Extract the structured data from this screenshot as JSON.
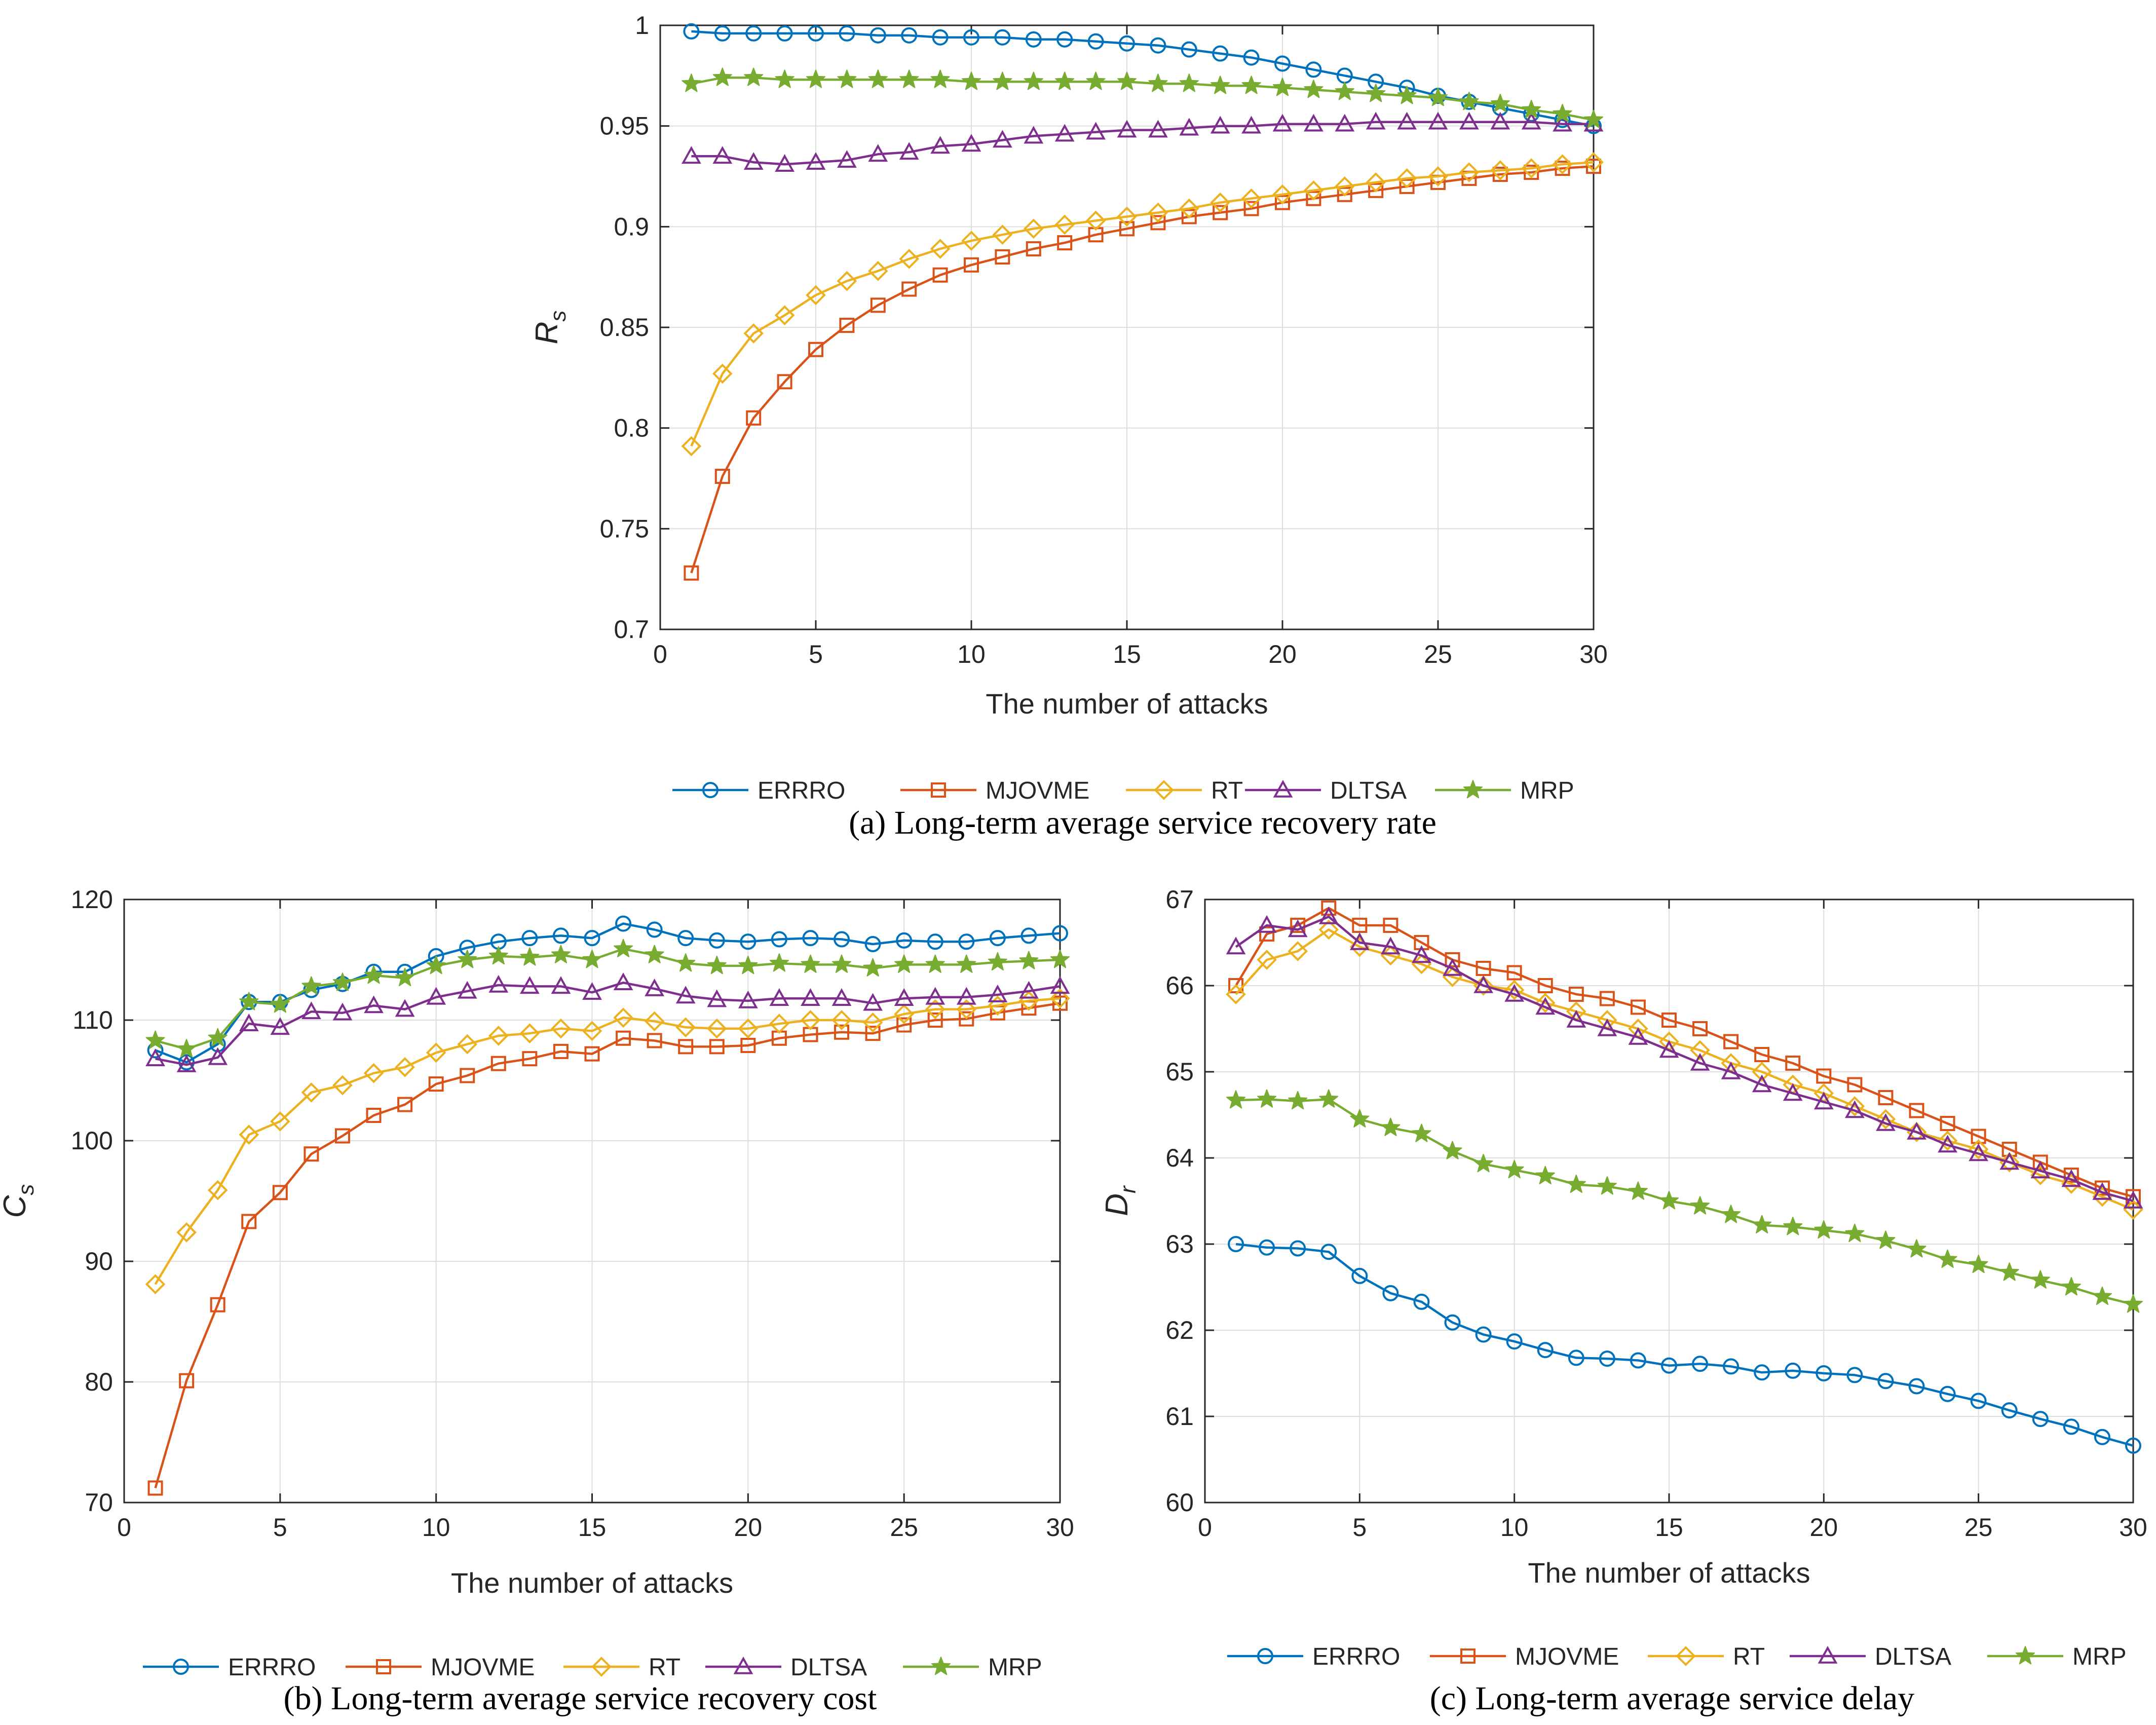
{
  "colors": {
    "ERRRO": "#0072BD",
    "MJOVME": "#D95319",
    "RT": "#EDB120",
    "DLTSA": "#7E2F8E",
    "MRP": "#77AC30"
  },
  "chart_data": [
    {
      "id": "a",
      "type": "line",
      "caption": "(a) Long-term average service recovery rate",
      "xlabel": "The number of attacks",
      "ylabel": "R",
      "ylabel_sub": "s",
      "xlim": [
        0,
        30
      ],
      "ylim": [
        0.7,
        1
      ],
      "xticks": [
        0,
        5,
        10,
        15,
        20,
        25,
        30
      ],
      "xtick_labels": [
        "0",
        "5",
        "10",
        "15",
        "20",
        "25",
        "30"
      ],
      "yticks": [
        0.7,
        0.75,
        0.8,
        0.85,
        0.9,
        0.95,
        1
      ],
      "ytick_labels": [
        "0.7",
        "0.75",
        "0.8",
        "0.85",
        "0.9",
        "0.95",
        "1"
      ],
      "x": [
        1,
        2,
        3,
        4,
        5,
        6,
        7,
        8,
        9,
        10,
        11,
        12,
        13,
        14,
        15,
        16,
        17,
        18,
        19,
        20,
        21,
        22,
        23,
        24,
        25,
        26,
        27,
        28,
        29,
        30
      ],
      "series": [
        {
          "name": "ERRRO",
          "marker": "circle",
          "values": [
            0.997,
            0.996,
            0.996,
            0.996,
            0.996,
            0.996,
            0.995,
            0.995,
            0.994,
            0.994,
            0.994,
            0.993,
            0.993,
            0.992,
            0.991,
            0.99,
            0.988,
            0.986,
            0.984,
            0.981,
            0.978,
            0.975,
            0.972,
            0.969,
            0.965,
            0.962,
            0.959,
            0.956,
            0.953,
            0.95
          ]
        },
        {
          "name": "MJOVME",
          "marker": "square",
          "values": [
            0.728,
            0.776,
            0.805,
            0.823,
            0.839,
            0.851,
            0.861,
            0.869,
            0.876,
            0.881,
            0.885,
            0.889,
            0.892,
            0.896,
            0.899,
            0.902,
            0.905,
            0.907,
            0.909,
            0.912,
            0.914,
            0.916,
            0.918,
            0.92,
            0.922,
            0.924,
            0.926,
            0.927,
            0.929,
            0.93
          ]
        },
        {
          "name": "RT",
          "marker": "diamond",
          "values": [
            0.791,
            0.827,
            0.847,
            0.856,
            0.866,
            0.873,
            0.878,
            0.884,
            0.889,
            0.893,
            0.896,
            0.899,
            0.901,
            0.903,
            0.905,
            0.907,
            0.909,
            0.912,
            0.914,
            0.916,
            0.918,
            0.92,
            0.922,
            0.924,
            0.925,
            0.927,
            0.928,
            0.929,
            0.931,
            0.932
          ]
        },
        {
          "name": "DLTSA",
          "marker": "triangle",
          "values": [
            0.935,
            0.935,
            0.932,
            0.931,
            0.932,
            0.933,
            0.936,
            0.937,
            0.94,
            0.941,
            0.943,
            0.945,
            0.946,
            0.947,
            0.948,
            0.948,
            0.949,
            0.95,
            0.95,
            0.951,
            0.951,
            0.951,
            0.952,
            0.952,
            0.952,
            0.952,
            0.952,
            0.952,
            0.951,
            0.951
          ]
        },
        {
          "name": "MRP",
          "marker": "star",
          "values": [
            0.971,
            0.974,
            0.974,
            0.973,
            0.973,
            0.973,
            0.973,
            0.973,
            0.973,
            0.972,
            0.972,
            0.972,
            0.972,
            0.972,
            0.972,
            0.971,
            0.971,
            0.97,
            0.97,
            0.969,
            0.968,
            0.967,
            0.966,
            0.965,
            0.964,
            0.962,
            0.961,
            0.958,
            0.956,
            0.953
          ]
        }
      ]
    },
    {
      "id": "b",
      "type": "line",
      "caption": "(b) Long-term average service recovery cost",
      "xlabel": "The number of attacks",
      "ylabel": "C",
      "ylabel_sub": "s",
      "xlim": [
        0,
        30
      ],
      "ylim": [
        70,
        120
      ],
      "xticks": [
        0,
        5,
        10,
        15,
        20,
        25,
        30
      ],
      "xtick_labels": [
        "0",
        "5",
        "10",
        "15",
        "20",
        "25",
        "30"
      ],
      "yticks": [
        70,
        80,
        90,
        100,
        110,
        120
      ],
      "ytick_labels": [
        "70",
        "80",
        "90",
        "100",
        "110",
        "120"
      ],
      "x": [
        1,
        2,
        3,
        4,
        5,
        6,
        7,
        8,
        9,
        10,
        11,
        12,
        13,
        14,
        15,
        16,
        17,
        18,
        19,
        20,
        21,
        22,
        23,
        24,
        25,
        26,
        27,
        28,
        29,
        30
      ],
      "series": [
        {
          "name": "ERRRO",
          "marker": "circle",
          "values": [
            107.5,
            106.5,
            108,
            111.5,
            111.5,
            112.5,
            113,
            114,
            114,
            115.3,
            116,
            116.5,
            116.8,
            117,
            116.8,
            118,
            117.5,
            116.8,
            116.6,
            116.5,
            116.7,
            116.8,
            116.7,
            116.3,
            116.6,
            116.5,
            116.5,
            116.8,
            117,
            117.2
          ]
        },
        {
          "name": "MJOVME",
          "marker": "square",
          "values": [
            71.2,
            80.1,
            86.4,
            93.3,
            95.7,
            98.9,
            100.4,
            102.1,
            103,
            104.7,
            105.4,
            106.4,
            106.8,
            107.4,
            107.2,
            108.5,
            108.3,
            107.8,
            107.8,
            107.9,
            108.5,
            108.8,
            109,
            108.9,
            109.6,
            110,
            110.1,
            110.6,
            111,
            111.4
          ]
        },
        {
          "name": "RT",
          "marker": "diamond",
          "values": [
            88.1,
            92.4,
            95.9,
            100.5,
            101.6,
            104,
            104.6,
            105.6,
            106.1,
            107.3,
            108,
            108.7,
            108.9,
            109.3,
            109.1,
            110.2,
            109.9,
            109.4,
            109.3,
            109.3,
            109.7,
            110,
            110,
            109.8,
            110.5,
            110.9,
            110.9,
            111.2,
            111.6,
            111.8
          ]
        },
        {
          "name": "DLTSA",
          "marker": "triangle",
          "values": [
            106.8,
            106.3,
            106.9,
            109.7,
            109.4,
            110.7,
            110.6,
            111.2,
            110.9,
            111.9,
            112.4,
            112.9,
            112.8,
            112.8,
            112.3,
            113.1,
            112.6,
            112,
            111.7,
            111.6,
            111.8,
            111.8,
            111.8,
            111.4,
            111.8,
            111.9,
            111.9,
            112.1,
            112.4,
            112.8
          ]
        },
        {
          "name": "MRP",
          "marker": "star",
          "values": [
            108.3,
            107.6,
            108.5,
            111.5,
            111.3,
            112.8,
            113.1,
            113.7,
            113.5,
            114.5,
            115,
            115.3,
            115.2,
            115.4,
            115,
            115.9,
            115.4,
            114.7,
            114.5,
            114.5,
            114.7,
            114.6,
            114.6,
            114.3,
            114.6,
            114.6,
            114.6,
            114.8,
            114.9,
            115
          ]
        }
      ]
    },
    {
      "id": "c",
      "type": "line",
      "caption": "(c) Long-term average service delay",
      "xlabel": "The number of attacks",
      "ylabel": "D",
      "ylabel_sub": "r",
      "xlim": [
        0,
        30
      ],
      "ylim": [
        60,
        67
      ],
      "xticks": [
        0,
        5,
        10,
        15,
        20,
        25,
        30
      ],
      "xtick_labels": [
        "0",
        "5",
        "10",
        "15",
        "20",
        "25",
        "30"
      ],
      "yticks": [
        60,
        61,
        62,
        63,
        64,
        65,
        66,
        67
      ],
      "ytick_labels": [
        "60",
        "61",
        "62",
        "63",
        "64",
        "65",
        "66",
        "67"
      ],
      "x": [
        1,
        2,
        3,
        4,
        5,
        6,
        7,
        8,
        9,
        10,
        11,
        12,
        13,
        14,
        15,
        16,
        17,
        18,
        19,
        20,
        21,
        22,
        23,
        24,
        25,
        26,
        27,
        28,
        29,
        30
      ],
      "series": [
        {
          "name": "ERRRO",
          "marker": "circle",
          "values": [
            63,
            62.96,
            62.95,
            62.91,
            62.63,
            62.43,
            62.33,
            62.09,
            61.95,
            61.87,
            61.77,
            61.68,
            61.67,
            61.65,
            61.59,
            61.61,
            61.58,
            61.51,
            61.53,
            61.5,
            61.48,
            61.41,
            61.35,
            61.26,
            61.18,
            61.07,
            60.97,
            60.88,
            60.76,
            60.66
          ]
        },
        {
          "name": "MJOVME",
          "marker": "square",
          "values": [
            66,
            66.6,
            66.7,
            66.9,
            66.7,
            66.7,
            66.5,
            66.3,
            66.2,
            66.15,
            66,
            65.9,
            65.85,
            65.75,
            65.6,
            65.5,
            65.35,
            65.2,
            65.1,
            64.95,
            64.85,
            64.7,
            64.55,
            64.4,
            64.25,
            64.1,
            63.95,
            63.8,
            63.65,
            63.55
          ]
        },
        {
          "name": "RT",
          "marker": "diamond",
          "values": [
            65.9,
            66.3,
            66.4,
            66.65,
            66.45,
            66.35,
            66.25,
            66.1,
            66,
            65.95,
            65.8,
            65.7,
            65.6,
            65.5,
            65.35,
            65.25,
            65.1,
            65,
            64.85,
            64.75,
            64.6,
            64.45,
            64.3,
            64.2,
            64.1,
            63.95,
            63.8,
            63.7,
            63.55,
            63.4
          ]
        },
        {
          "name": "DLTSA",
          "marker": "triangle",
          "values": [
            66.45,
            66.7,
            66.65,
            66.8,
            66.5,
            66.45,
            66.35,
            66.2,
            66,
            65.9,
            65.75,
            65.6,
            65.5,
            65.4,
            65.25,
            65.1,
            65,
            64.85,
            64.75,
            64.65,
            64.55,
            64.4,
            64.3,
            64.15,
            64.05,
            63.95,
            63.85,
            63.75,
            63.6,
            63.5
          ]
        },
        {
          "name": "MRP",
          "marker": "star",
          "values": [
            64.67,
            64.68,
            64.66,
            64.68,
            64.45,
            64.35,
            64.28,
            64.08,
            63.93,
            63.86,
            63.79,
            63.69,
            63.67,
            63.61,
            63.5,
            63.44,
            63.34,
            63.22,
            63.2,
            63.16,
            63.12,
            63.04,
            62.94,
            62.82,
            62.76,
            62.67,
            62.58,
            62.5,
            62.39,
            62.3
          ]
        }
      ]
    }
  ]
}
